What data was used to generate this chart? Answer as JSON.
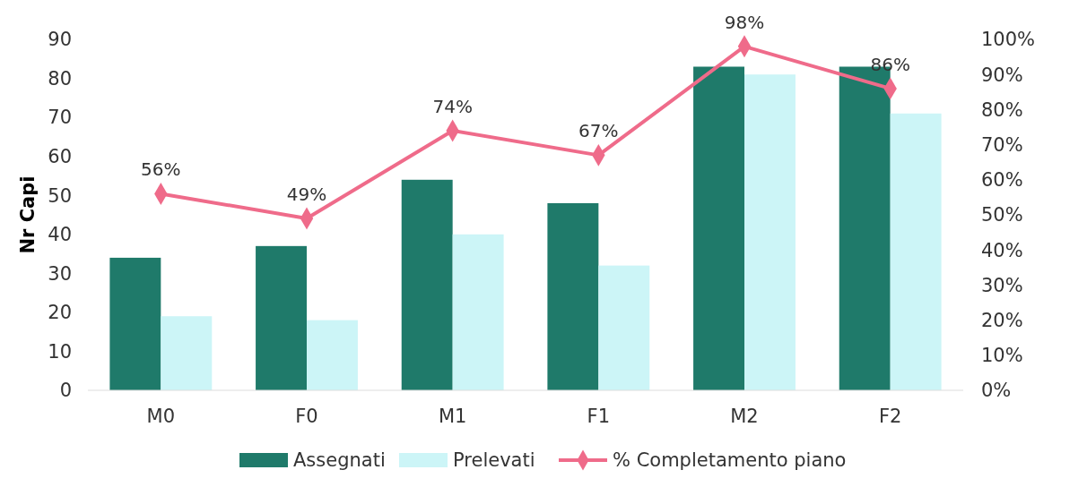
{
  "chart_data": {
    "type": "bar",
    "ylabel": "Nr Capi",
    "categories": [
      "M0",
      "F0",
      "M1",
      "F1",
      "M2",
      "F2"
    ],
    "series": [
      {
        "name": "Assegnati",
        "color": "#1f7a6a",
        "values": [
          34,
          37,
          54,
          48,
          83,
          83
        ]
      },
      {
        "name": "Prelevati",
        "color": "#ccf5f7",
        "values": [
          19,
          18,
          40,
          32,
          81,
          71
        ]
      },
      {
        "name": "% Completamento piano",
        "type": "line",
        "axis": "y2",
        "color": "#ef6b8a",
        "marker": "diamond",
        "values": [
          56,
          49,
          74,
          67,
          98,
          86
        ],
        "value_labels": [
          "56%",
          "49%",
          "74%",
          "67%",
          "98%",
          "86%"
        ]
      }
    ],
    "ylim": [
      0,
      90
    ],
    "yticks": [
      0,
      10,
      20,
      30,
      40,
      50,
      60,
      70,
      80,
      90
    ],
    "y2lim": [
      0,
      100
    ],
    "y2ticks": [
      {
        "value": 0,
        "label": "0%"
      },
      {
        "value": 10,
        "label": "10%"
      },
      {
        "value": 20,
        "label": "20%"
      },
      {
        "value": 30,
        "label": "30%"
      },
      {
        "value": 40,
        "label": "40%"
      },
      {
        "value": 50,
        "label": "50%"
      },
      {
        "value": 60,
        "label": "60%"
      },
      {
        "value": 70,
        "label": "70%"
      },
      {
        "value": 80,
        "label": "80%"
      },
      {
        "value": 90,
        "label": "90%"
      },
      {
        "value": 100,
        "label": "100%"
      }
    ],
    "grid": false,
    "legend": "bottom"
  }
}
